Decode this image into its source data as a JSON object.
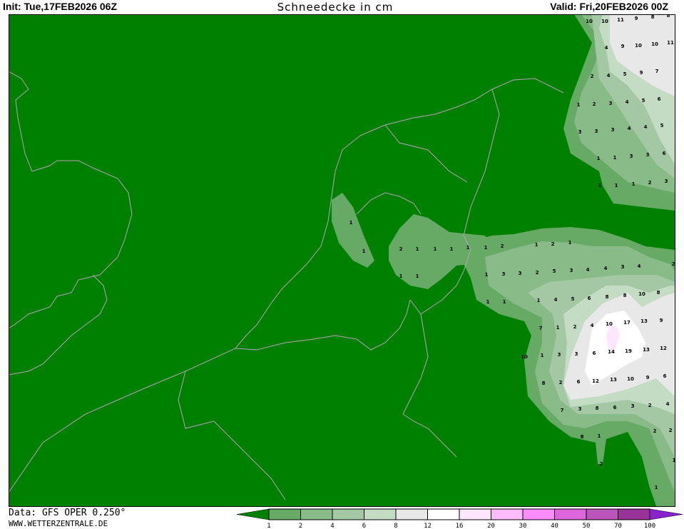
{
  "header": {
    "init": "Init: Tue,17FEB2026 06Z",
    "title": "Schneedecke in cm",
    "valid": "Valid: Fri,20FEB2026 00Z"
  },
  "footer": {
    "data_source": "Data: GFS OPER 0.250°",
    "website": "WWW.WETTERZENTRALE.DE"
  },
  "map": {
    "background_color": "#008000",
    "coastline_color": "#b4a4b4",
    "point_labels": [
      "10",
      "10",
      "11",
      "9",
      "8",
      "8",
      "4",
      "9",
      "10",
      "10",
      "11",
      "2",
      "4",
      "5",
      "9",
      "7",
      "1",
      "2",
      "3",
      "4",
      "5",
      "6",
      "3",
      "3",
      "3",
      "4",
      "4",
      "5",
      "1",
      "1",
      "3",
      "3",
      "6",
      "1",
      "1",
      "1",
      "2",
      "3",
      "1",
      "1",
      "2",
      "1",
      "1",
      "1",
      "1",
      "1",
      "1",
      "1",
      "2",
      "1",
      "2",
      "1",
      "1",
      "3",
      "3",
      "2",
      "5",
      "3",
      "4",
      "4",
      "3",
      "4",
      "2",
      "1",
      "1",
      "1",
      "4",
      "5",
      "6",
      "8",
      "8",
      "10",
      "8",
      "7",
      "1",
      "2",
      "4",
      "10",
      "17",
      "13",
      "9",
      "10",
      "1",
      "3",
      "3",
      "6",
      "14",
      "19",
      "13",
      "12",
      "8",
      "2",
      "6",
      "12",
      "13",
      "10",
      "9",
      "6",
      "7",
      "3",
      "8",
      "6",
      "3",
      "2",
      "4",
      "8",
      "1",
      "2",
      "2",
      "2",
      "1",
      "1",
      "2"
    ]
  },
  "legend": {
    "unit": "cm",
    "ticks": [
      "1",
      "2",
      "4",
      "6",
      "8",
      "12",
      "16",
      "20",
      "30",
      "40",
      "50",
      "70",
      "100"
    ],
    "colors": [
      "#66aa66",
      "#88bb88",
      "#a4c8a4",
      "#c4dcc4",
      "#e8e8e8",
      "#ffffff",
      "#ffe6ff",
      "#ffbbff",
      "#ff8cff",
      "#dd66dd",
      "#bb55bb",
      "#993399"
    ],
    "below_color": "#008000",
    "above_color": "#8822cc"
  }
}
